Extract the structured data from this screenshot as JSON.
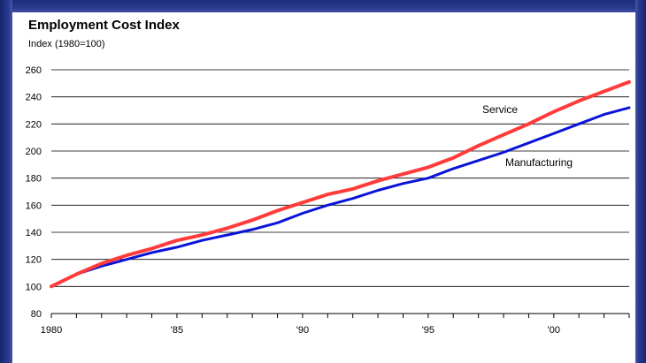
{
  "chart_data": {
    "type": "line",
    "title": "Employment Cost Index",
    "ylabel": "Index (1980=100)",
    "xlabel": "",
    "ylim": [
      80,
      260
    ],
    "yticks": [
      80,
      100,
      120,
      140,
      160,
      180,
      200,
      220,
      240,
      260
    ],
    "xlim": [
      1980,
      2003
    ],
    "xticks": [
      {
        "value": 1980,
        "label": "1980"
      },
      {
        "value": 1985,
        "label": "'85"
      },
      {
        "value": 1990,
        "label": "'90"
      },
      {
        "value": 1995,
        "label": "'95"
      },
      {
        "value": 2000,
        "label": "'00"
      }
    ],
    "grid": "horizontal",
    "series": [
      {
        "name": "Service",
        "color": "#ff3b3b",
        "x": [
          1980,
          1981,
          1982,
          1983,
          1984,
          1985,
          1986,
          1987,
          1988,
          1989,
          1990,
          1991,
          1992,
          1993,
          1994,
          1995,
          1996,
          1997,
          1998,
          1999,
          2000,
          2001,
          2002,
          2003
        ],
        "values": [
          100,
          109,
          117,
          123,
          128,
          134,
          138,
          143,
          149,
          156,
          162,
          168,
          172,
          178,
          183,
          188,
          195,
          204,
          212,
          220,
          229,
          237,
          244,
          251
        ]
      },
      {
        "name": "Manufacturing",
        "color": "#0a14d8",
        "x": [
          1980,
          1981,
          1982,
          1983,
          1984,
          1985,
          1986,
          1987,
          1988,
          1989,
          1990,
          1991,
          1992,
          1993,
          1994,
          1995,
          1996,
          1997,
          1998,
          1999,
          2000,
          2001,
          2002,
          2003
        ],
        "values": [
          100,
          109,
          115,
          120,
          125,
          129,
          134,
          138,
          142,
          147,
          154,
          160,
          165,
          171,
          176,
          180,
          187,
          193,
          199,
          206,
          213,
          220,
          227,
          232
        ]
      }
    ]
  }
}
